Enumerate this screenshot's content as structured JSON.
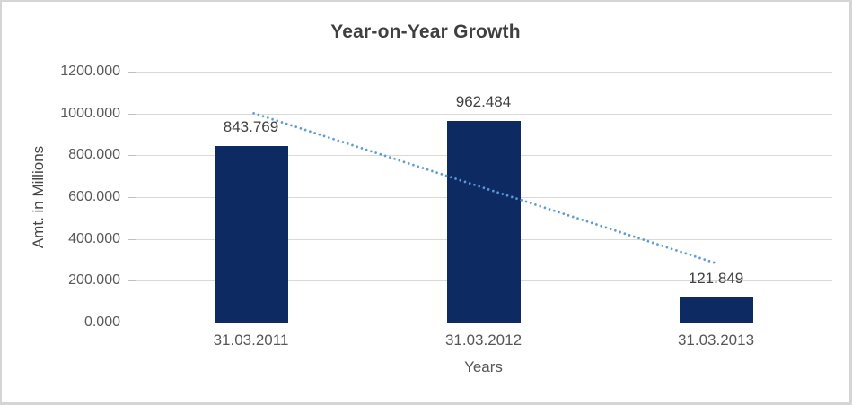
{
  "window": {
    "background": "#ffffff",
    "border_color": "#d5d5d5"
  },
  "chart_data": {
    "type": "bar",
    "title": "Year-on-Year Growth",
    "xlabel": "Years",
    "ylabel": "Amt. in Millions",
    "categories": [
      "31.03.2011",
      "31.03.2012",
      "31.03.2013"
    ],
    "values": [
      843.769,
      962.484,
      121.849
    ],
    "data_labels": [
      "843.769",
      "962.484",
      "121.849"
    ],
    "ylim": [
      0,
      1200
    ],
    "ytick_step": 200,
    "ytick_labels": [
      "0.000",
      "200.000",
      "400.000",
      "600.000",
      "800.000",
      "1000.000",
      "1200.000"
    ],
    "grid": true,
    "legend": "none",
    "trendline": {
      "type": "linear",
      "style": "dotted",
      "color": "#5b9bd5"
    },
    "colors": {
      "bar": "#0d2a63",
      "gridline": "#d9d9d9",
      "title_text": "#3f3f3f",
      "tick_text": "#595959",
      "label_text": "#404040"
    }
  }
}
